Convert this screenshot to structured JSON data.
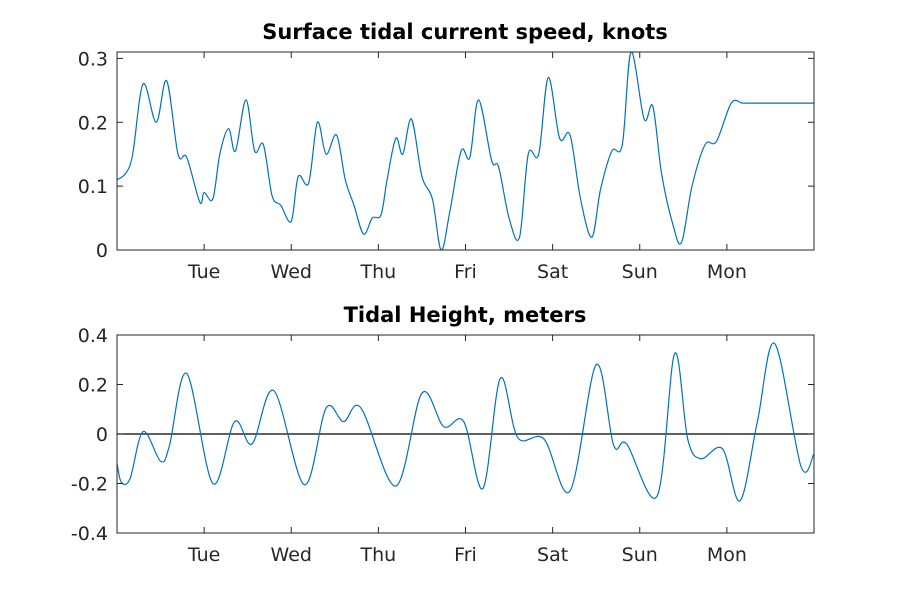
{
  "chart_data": [
    {
      "type": "line",
      "title": "Surface tidal current speed, knots",
      "xlabel": "",
      "ylabel": "",
      "x_unit": "days",
      "xlim": [
        0,
        8
      ],
      "ylim": [
        0,
        0.31
      ],
      "yticks": [
        0,
        0.1,
        0.2,
        0.3
      ],
      "ytick_labels": [
        "0",
        "0.1",
        "0.2",
        "0.3"
      ],
      "xticks": [
        1,
        2,
        3,
        4,
        5,
        6,
        7
      ],
      "xtick_labels": [
        "Tue",
        "Wed",
        "Thu",
        "Fri",
        "Sat",
        "Sun",
        "Mon"
      ],
      "grid": false,
      "color": "#0072BD",
      "series": [
        {
          "x": [
            0,
            0.1,
            0.18,
            0.3,
            0.45,
            0.57,
            0.7,
            0.8,
            0.95,
            1.0,
            1.1,
            1.18,
            1.28,
            1.36,
            1.48,
            1.58,
            1.68,
            1.78,
            1.88,
            2.0,
            2.08,
            2.2,
            2.3,
            2.4,
            2.52,
            2.62,
            2.72,
            2.83,
            2.93,
            3.03,
            3.1,
            3.2,
            3.28,
            3.38,
            3.5,
            3.62,
            3.72,
            3.82,
            3.95,
            4.05,
            4.15,
            4.3,
            4.38,
            4.5,
            4.62,
            4.72,
            4.84,
            4.95,
            5.08,
            5.2,
            5.32,
            5.45,
            5.55,
            5.68,
            5.8,
            5.9,
            6.05,
            6.15,
            6.25,
            6.38,
            6.48,
            6.6,
            6.75,
            6.88,
            7.05,
            7.18,
            7.3,
            7.45,
            7.6,
            7.72,
            7.85,
            8.0
          ],
          "y": [
            0.11,
            0.12,
            0.15,
            0.26,
            0.2,
            0.265,
            0.15,
            0.145,
            0.075,
            0.09,
            0.08,
            0.15,
            0.19,
            0.155,
            0.235,
            0.155,
            0.165,
            0.085,
            0.07,
            0.045,
            0.115,
            0.105,
            0.2,
            0.15,
            0.18,
            0.11,
            0.07,
            0.025,
            0.05,
            0.055,
            0.11,
            0.175,
            0.15,
            0.205,
            0.115,
            0.08,
            0.0,
            0.06,
            0.155,
            0.145,
            0.235,
            0.14,
            0.13,
            0.05,
            0.02,
            0.15,
            0.15,
            0.27,
            0.175,
            0.18,
            0.08,
            0.02,
            0.095,
            0.155,
            0.165,
            0.31,
            0.205,
            0.225,
            0.12,
            0.04,
            0.012,
            0.1,
            0.165,
            0.17,
            0.23,
            0.23,
            0.23,
            0.23,
            0.23,
            0.23,
            0.23,
            0.23
          ]
        }
      ]
    },
    {
      "type": "line",
      "title": "Tidal Height, meters",
      "xlabel": "",
      "ylabel": "",
      "x_unit": "days",
      "xlim": [
        0,
        8
      ],
      "ylim": [
        -0.4,
        0.4
      ],
      "yticks": [
        -0.4,
        -0.2,
        0,
        0.2,
        0.4
      ],
      "ytick_labels": [
        "-0.4",
        "-0.2",
        "0",
        "0.2",
        "0.4"
      ],
      "xticks": [
        1,
        2,
        3,
        4,
        5,
        6,
        7
      ],
      "xtick_labels": [
        "Tue",
        "Wed",
        "Thu",
        "Fri",
        "Sat",
        "Sun",
        "Mon"
      ],
      "grid": false,
      "zero_line": true,
      "color": "#0072BD",
      "series": [
        {
          "x": [
            0,
            0.05,
            0.15,
            0.3,
            0.5,
            0.6,
            0.8,
            1.1,
            1.35,
            1.55,
            1.8,
            2.15,
            2.4,
            2.6,
            2.8,
            3.2,
            3.5,
            3.75,
            3.98,
            4.2,
            4.4,
            4.6,
            4.9,
            5.2,
            5.5,
            5.7,
            5.85,
            6.2,
            6.4,
            6.55,
            6.7,
            6.95,
            7.15,
            7.35,
            7.55,
            7.85,
            8.0
          ],
          "y": [
            -0.12,
            -0.195,
            -0.18,
            0.01,
            -0.11,
            -0.05,
            0.245,
            -0.2,
            0.05,
            -0.04,
            0.175,
            -0.205,
            0.105,
            0.05,
            0.105,
            -0.21,
            0.165,
            0.03,
            0.05,
            -0.22,
            0.225,
            -0.015,
            -0.02,
            -0.23,
            0.28,
            -0.045,
            -0.04,
            -0.25,
            0.325,
            -0.02,
            -0.1,
            -0.06,
            -0.27,
            0.05,
            0.365,
            -0.13,
            -0.08
          ]
        }
      ]
    }
  ]
}
